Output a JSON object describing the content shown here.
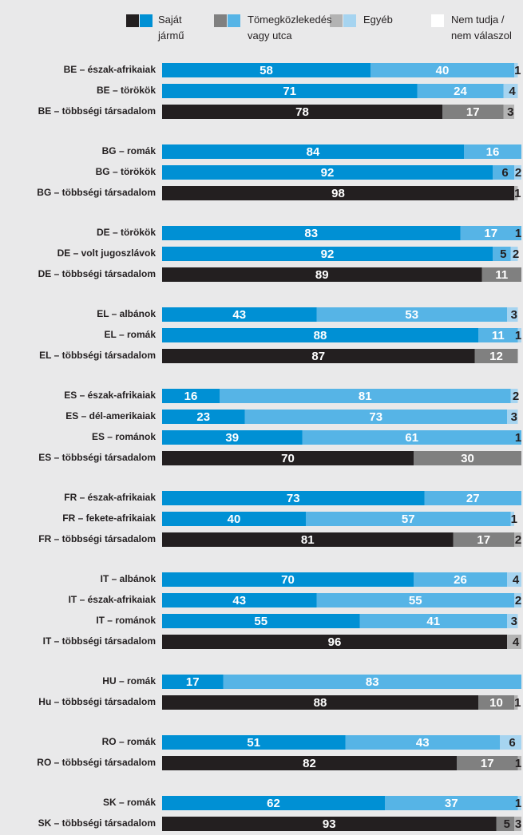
{
  "chart_data": {
    "type": "stacked-horizontal-bar",
    "categories": [
      "BE – észak-afrikaiak",
      "BE – törökök",
      "BE – többségi társadalom",
      "BG – romák",
      "BG – törökök",
      "BG – többségi társadalom",
      "DE – törökök",
      "DE – volt jugoszlávok",
      "DE – többségi társadalom",
      "EL – albánok",
      "EL – romák",
      "EL – többségi társadalom",
      "ES – észak-afrikaiak",
      "ES – dél-amerikaiak",
      "ES – románok",
      "ES – többségi társadalom",
      "FR – észak-afrikaiak",
      "FR – fekete-afrikaiak",
      "FR – többségi társadalom",
      "IT – albánok",
      "IT – észak-afrikaiak",
      "IT – románok",
      "IT – többségi társadalom",
      "HU – romák",
      "Hu – többségi társadalom",
      "RO – romák",
      "RO – többségi társadalom",
      "SK – romák",
      "SK – többségi társadalom"
    ],
    "groups": [
      3,
      3,
      3,
      3,
      4,
      3,
      4,
      2,
      2,
      2
    ],
    "series": [
      {
        "name": "Saját jármű",
        "values": [
          58,
          71,
          78,
          84,
          92,
          98,
          83,
          92,
          89,
          43,
          88,
          87,
          16,
          23,
          39,
          70,
          73,
          40,
          81,
          70,
          43,
          55,
          96,
          17,
          88,
          51,
          82,
          62,
          93
        ],
        "colors": [
          "#0090d4",
          "#0090d4",
          "#231f20",
          "#0090d4",
          "#0090d4",
          "#231f20",
          "#0090d4",
          "#0090d4",
          "#231f20",
          "#0090d4",
          "#0090d4",
          "#231f20",
          "#0090d4",
          "#0090d4",
          "#0090d4",
          "#231f20",
          "#0090d4",
          "#0090d4",
          "#231f20",
          "#0090d4",
          "#0090d4",
          "#0090d4",
          "#231f20",
          "#0090d4",
          "#231f20",
          "#0090d4",
          "#231f20",
          "#0090d4",
          "#231f20"
        ]
      },
      {
        "name": "Tömegközlekedés vagy utca",
        "values": [
          40,
          24,
          17,
          16,
          6,
          null,
          17,
          5,
          11,
          53,
          11,
          12,
          81,
          73,
          61,
          30,
          27,
          57,
          17,
          26,
          55,
          41,
          null,
          83,
          10,
          43,
          17,
          37,
          5
        ],
        "colors": [
          "#56b4e6",
          "#56b4e6",
          "#808080",
          "#56b4e6",
          "#56b4e6",
          "#808080",
          "#56b4e6",
          "#56b4e6",
          "#808080",
          "#56b4e6",
          "#56b4e6",
          "#808080",
          "#56b4e6",
          "#56b4e6",
          "#56b4e6",
          "#808080",
          "#56b4e6",
          "#56b4e6",
          "#808080",
          "#56b4e6",
          "#56b4e6",
          "#56b4e6",
          "#808080",
          "#56b4e6",
          "#808080",
          "#56b4e6",
          "#808080",
          "#56b4e6",
          "#808080"
        ]
      },
      {
        "name": "Egyéb",
        "values": [
          1,
          4,
          3,
          null,
          2,
          1,
          1,
          2,
          null,
          3,
          1,
          null,
          2,
          3,
          1,
          null,
          null,
          1,
          2,
          4,
          2,
          3,
          4,
          null,
          1,
          6,
          1,
          1,
          3
        ],
        "colors": [
          "#a6d4f0",
          "#a6d4f0",
          "#b3b3b3",
          "#a6d4f0",
          "#a6d4f0",
          "#b3b3b3",
          "#a6d4f0",
          "#a6d4f0",
          "#b3b3b3",
          "#a6d4f0",
          "#a6d4f0",
          "#b3b3b3",
          "#a6d4f0",
          "#a6d4f0",
          "#a6d4f0",
          "#b3b3b3",
          "#a6d4f0",
          "#a6d4f0",
          "#b3b3b3",
          "#a6d4f0",
          "#a6d4f0",
          "#a6d4f0",
          "#b3b3b3",
          "#a6d4f0",
          "#b3b3b3",
          "#a6d4f0",
          "#b3b3b3",
          "#a6d4f0",
          "#b3b3b3"
        ]
      },
      {
        "name": "Nem tudja / nem válaszol",
        "values": [
          null,
          null,
          null,
          null,
          null,
          null,
          null,
          null,
          null,
          null,
          null,
          null,
          null,
          null,
          null,
          null,
          null,
          null,
          null,
          null,
          null,
          null,
          null,
          null,
          null,
          null,
          null,
          null,
          null
        ],
        "colors": [
          "#ffffff",
          "#ffffff",
          "#ffffff",
          "#ffffff",
          "#ffffff",
          "#ffffff",
          "#ffffff",
          "#ffffff",
          "#ffffff",
          "#ffffff",
          "#ffffff",
          "#ffffff",
          "#ffffff",
          "#ffffff",
          "#ffffff",
          "#ffffff",
          "#ffffff",
          "#ffffff",
          "#ffffff",
          "#ffffff",
          "#ffffff",
          "#ffffff",
          "#ffffff",
          "#ffffff",
          "#ffffff",
          "#ffffff",
          "#ffffff",
          "#ffffff",
          "#ffffff"
        ]
      }
    ],
    "xlim": [
      0,
      100
    ]
  }
}
